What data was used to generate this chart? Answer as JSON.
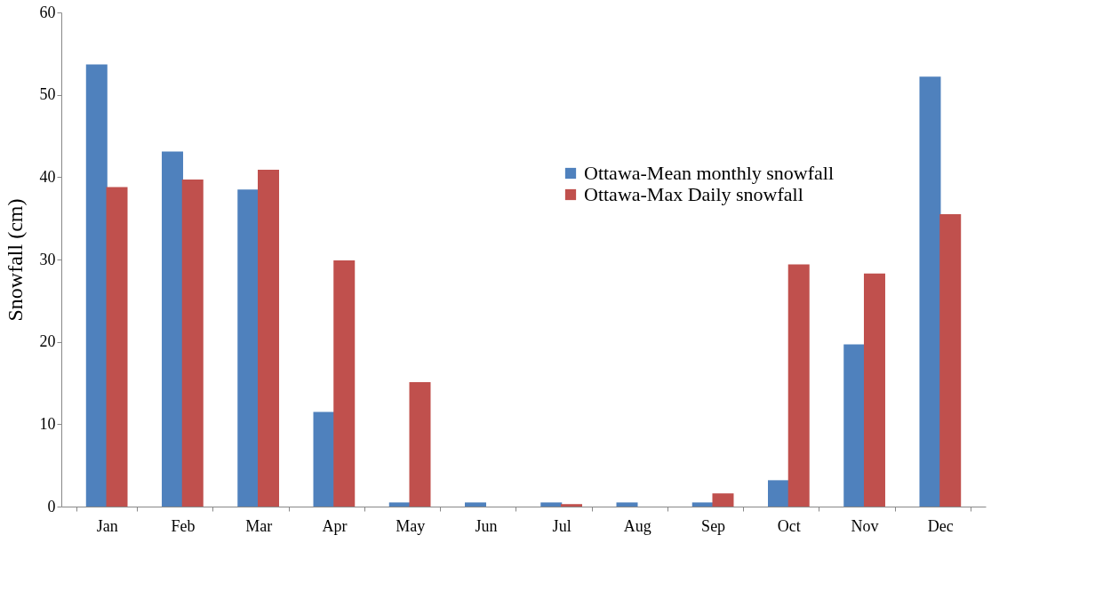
{
  "chart_data": {
    "type": "bar",
    "ylabel": "Snowfall (cm)",
    "categories": [
      "Jan",
      "Feb",
      "Mar",
      "Apr",
      "May",
      "Jun",
      "Jul",
      "Aug",
      "Sep",
      "Oct",
      "Nov",
      "Dec"
    ],
    "series": [
      {
        "name": "Ottawa-Mean monthly snowfall",
        "color": "#4f81bd",
        "values": [
          53.7,
          43.1,
          38.5,
          11.5,
          0.5,
          0.5,
          0.5,
          0.5,
          0.5,
          3.2,
          19.7,
          52.2
        ]
      },
      {
        "name": "Ottawa-Max Daily snowfall",
        "color": "#c0504d",
        "values": [
          38.8,
          39.7,
          40.9,
          29.9,
          15.1,
          0,
          0.3,
          0,
          1.6,
          29.4,
          28.3,
          35.5
        ]
      }
    ],
    "ylim": [
      0,
      60
    ],
    "yticks": [
      0,
      10,
      20,
      30,
      40,
      50,
      60
    ],
    "grid": false,
    "legend": "top right"
  }
}
